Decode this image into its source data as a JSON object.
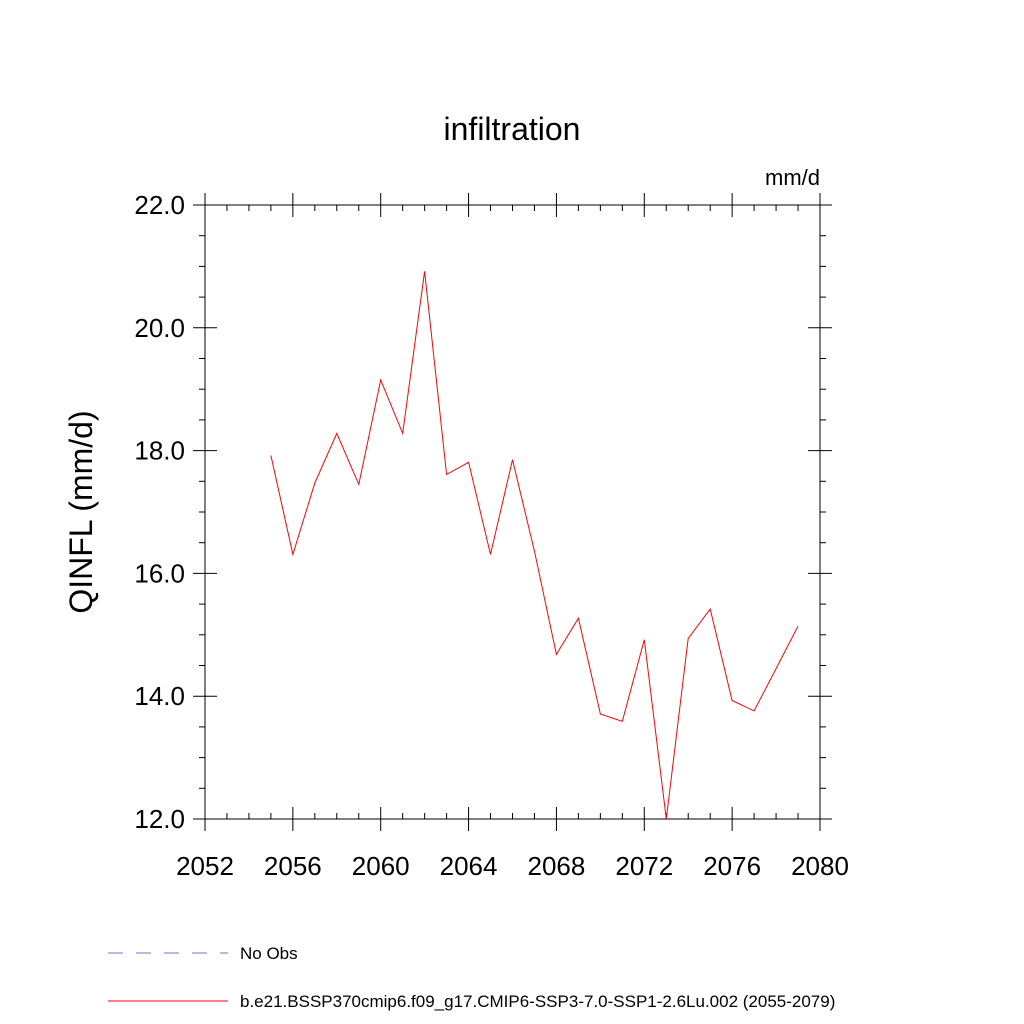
{
  "chart_data": {
    "type": "line",
    "title": "infiltration",
    "units_label": "mm/d",
    "ylabel": "QINFL  (mm/d)",
    "xlabel": "",
    "xlim": [
      2052,
      2080
    ],
    "ylim": [
      12.0,
      22.0
    ],
    "x_ticks": [
      2052,
      2056,
      2060,
      2064,
      2068,
      2072,
      2076,
      2080
    ],
    "x_tick_labels": [
      "2052",
      "2056",
      "2060",
      "2064",
      "2068",
      "2072",
      "2076",
      "2080"
    ],
    "y_ticks": [
      12.0,
      14.0,
      16.0,
      18.0,
      20.0,
      22.0
    ],
    "y_tick_labels": [
      "12.0",
      "14.0",
      "16.0",
      "18.0",
      "20.0",
      "22.0"
    ],
    "grid": false,
    "legend_position": "bottom-left",
    "series": [
      {
        "name": "b.e21.BSSP370cmip6.f09_g17.CMIP6-SSP3-7.0-SSP1-2.6Lu.002 (2055-2079)",
        "color": "#ff0000",
        "style": "solid",
        "x": [
          2055,
          2056,
          2057,
          2058,
          2059,
          2060,
          2061,
          2062,
          2063,
          2064,
          2065,
          2066,
          2067,
          2068,
          2069,
          2070,
          2071,
          2072,
          2073,
          2074,
          2075,
          2076,
          2077,
          2078,
          2079
        ],
        "values": [
          17.92,
          16.31,
          17.47,
          18.28,
          17.45,
          19.15,
          18.28,
          20.92,
          17.61,
          17.81,
          16.31,
          17.85,
          16.36,
          14.68,
          15.27,
          13.71,
          13.59,
          14.92,
          12.0,
          14.94,
          15.42,
          13.93,
          13.76,
          14.45,
          15.14
        ]
      }
    ],
    "legend": [
      {
        "label": "No Obs",
        "color": "#7b70c8",
        "style": "dashed"
      },
      {
        "label": "b.e21.BSSP370cmip6.f09_g17.CMIP6-SSP3-7.0-SSP1-2.6Lu.002 (2055-2079)",
        "color": "#ff0000",
        "style": "solid"
      }
    ]
  }
}
